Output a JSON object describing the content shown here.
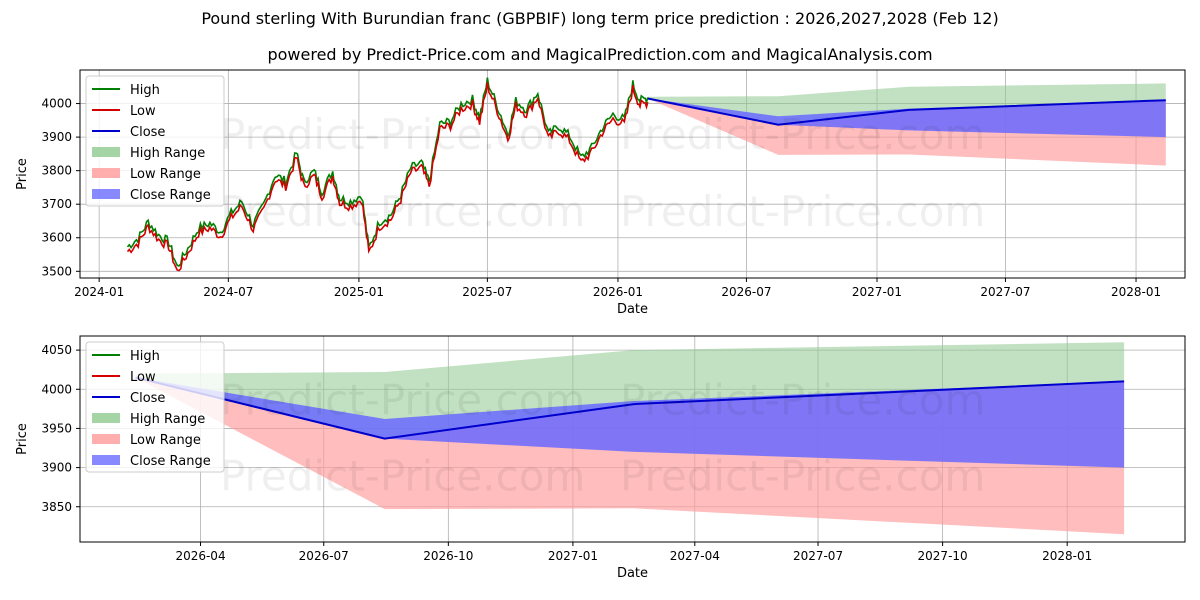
{
  "title": "Pound sterling With Burundian franc (GBPBIF) long term price prediction : 2026,2027,2028 (Feb 12)",
  "subtitle": "powered by Predict-Price.com and MagicalPrediction.com and MagicalAnalysis.com",
  "watermark": "Predict-Price.com",
  "colors": {
    "high": "#008000",
    "low": "#d40000",
    "close": "#0000cc",
    "high_range": "#8fc98f",
    "low_range": "#ff9a9a",
    "close_range": "#6a6aff",
    "grid": "#b0b0b0"
  },
  "legend": [
    {
      "label": "High",
      "kind": "line",
      "color": "#008000"
    },
    {
      "label": "Low",
      "kind": "line",
      "color": "#d40000"
    },
    {
      "label": "Close",
      "kind": "line",
      "color": "#0000cc"
    },
    {
      "label": "High Range",
      "kind": "patch",
      "color": "#8fc98f"
    },
    {
      "label": "Low Range",
      "kind": "patch",
      "color": "#ff9a9a"
    },
    {
      "label": "Close Range",
      "kind": "patch",
      "color": "#6a6aff"
    }
  ],
  "chart_data": [
    {
      "type": "line",
      "name": "long-term",
      "xlabel": "Date",
      "ylabel": "Price",
      "x_ticks": [
        "2024-01",
        "2024-07",
        "2025-01",
        "2025-07",
        "2026-01",
        "2026-07",
        "2027-01",
        "2027-07",
        "2028-01"
      ],
      "y_ticks": [
        3500,
        3600,
        3700,
        3800,
        3900,
        4000
      ],
      "xlim": [
        "2023-12-05",
        "2028-03-10"
      ],
      "ylim": [
        3480,
        4100
      ],
      "history": {
        "series": [
          "High",
          "Low"
        ],
        "points": [
          [
            "2024-02-10",
            3565
          ],
          [
            "2024-02-25",
            3590
          ],
          [
            "2024-03-10",
            3640
          ],
          [
            "2024-03-25",
            3600
          ],
          [
            "2024-04-08",
            3580
          ],
          [
            "2024-04-20",
            3505
          ],
          [
            "2024-05-05",
            3560
          ],
          [
            "2024-05-20",
            3620
          ],
          [
            "2024-06-05",
            3635
          ],
          [
            "2024-06-20",
            3610
          ],
          [
            "2024-07-05",
            3665
          ],
          [
            "2024-07-20",
            3700
          ],
          [
            "2024-08-05",
            3630
          ],
          [
            "2024-08-20",
            3690
          ],
          [
            "2024-09-05",
            3780
          ],
          [
            "2024-09-20",
            3760
          ],
          [
            "2024-10-05",
            3845
          ],
          [
            "2024-10-15",
            3760
          ],
          [
            "2024-10-30",
            3790
          ],
          [
            "2024-11-10",
            3730
          ],
          [
            "2024-11-25",
            3790
          ],
          [
            "2024-12-05",
            3710
          ],
          [
            "2024-12-20",
            3700
          ],
          [
            "2025-01-05",
            3720
          ],
          [
            "2025-01-15",
            3560
          ],
          [
            "2025-01-30",
            3640
          ],
          [
            "2025-02-15",
            3660
          ],
          [
            "2025-03-01",
            3720
          ],
          [
            "2025-03-15",
            3800
          ],
          [
            "2025-03-30",
            3815
          ],
          [
            "2025-04-10",
            3760
          ],
          [
            "2025-04-25",
            3930
          ],
          [
            "2025-05-10",
            3940
          ],
          [
            "2025-05-25",
            3990
          ],
          [
            "2025-06-10",
            4005
          ],
          [
            "2025-06-20",
            3950
          ],
          [
            "2025-07-01",
            4060
          ],
          [
            "2025-07-15",
            3985
          ],
          [
            "2025-07-30",
            3900
          ],
          [
            "2025-08-10",
            4000
          ],
          [
            "2025-08-25",
            3975
          ],
          [
            "2025-09-10",
            4025
          ],
          [
            "2025-09-25",
            3900
          ],
          [
            "2025-10-10",
            3925
          ],
          [
            "2025-10-25",
            3895
          ],
          [
            "2025-11-10",
            3830
          ],
          [
            "2025-11-25",
            3860
          ],
          [
            "2025-12-10",
            3920
          ],
          [
            "2025-12-25",
            3960
          ],
          [
            "2026-01-10",
            3945
          ],
          [
            "2026-01-22",
            4050
          ],
          [
            "2026-02-01",
            4000
          ],
          [
            "2026-02-12",
            4010
          ]
        ]
      },
      "forecast": {
        "dates": [
          "2026-02-12",
          "2026-08-15",
          "2027-02-15",
          "2028-02-12"
        ],
        "high": [
          4020,
          4022,
          4050,
          4060
        ],
        "low": [
          4015,
          3847,
          3848,
          3815
        ],
        "close": [
          4015,
          3937,
          3981,
          4010
        ],
        "close_range_low": [
          4015,
          3937,
          3920,
          3900
        ],
        "close_range_high": [
          4015,
          3962,
          3985,
          4010
        ]
      }
    },
    {
      "type": "area",
      "name": "forecast-zoom",
      "xlabel": "Date",
      "ylabel": "Price",
      "x_ticks": [
        "2026-04",
        "2026-07",
        "2026-10",
        "2027-01",
        "2027-04",
        "2027-07",
        "2027-10",
        "2028-01"
      ],
      "y_ticks": [
        3850,
        3900,
        3950,
        4000,
        4050
      ],
      "xlim": [
        "2026-01-02",
        "2028-03-28"
      ],
      "ylim": [
        3805,
        4068
      ],
      "forecast": {
        "dates": [
          "2026-02-12",
          "2026-08-15",
          "2027-02-15",
          "2028-02-12"
        ],
        "high": [
          4020,
          4022,
          4050,
          4060
        ],
        "low": [
          4015,
          3847,
          3848,
          3815
        ],
        "close": [
          4015,
          3937,
          3981,
          4010
        ],
        "close_range_low": [
          4015,
          3937,
          3920,
          3900
        ],
        "close_range_high": [
          4015,
          3962,
          3985,
          4010
        ]
      }
    }
  ]
}
